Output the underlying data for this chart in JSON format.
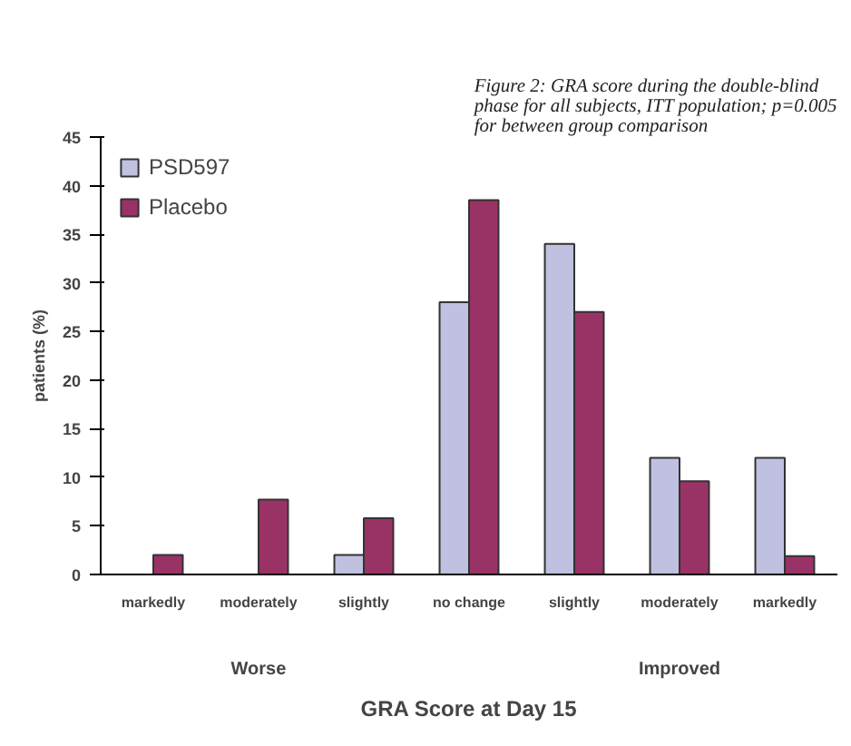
{
  "chart_data": {
    "type": "bar",
    "title": "Figure 2: GRA score during the double-blind phase for all subjects, ITT population; p=0.005 for between group comparison",
    "xlabel": "GRA Score at Day 15",
    "ylabel": "patients (%)",
    "categories": [
      "markedly",
      "moderately",
      "slightly",
      "no change",
      "slightly",
      "moderately",
      "markedly"
    ],
    "series": [
      {
        "name": "PSD597",
        "color": "#c0c0e0",
        "values": [
          null,
          null,
          2,
          28,
          34,
          12,
          12
        ]
      },
      {
        "name": "Placebo",
        "color": "#993366",
        "values": [
          2,
          7.7,
          5.8,
          38.5,
          27,
          9.6,
          1.9
        ]
      }
    ],
    "annotations": [
      "Worse",
      "Improved"
    ],
    "ylim": [
      0,
      45
    ],
    "yticks": [
      0,
      5,
      10,
      15,
      20,
      25,
      30,
      35,
      40,
      45
    ],
    "grid": false,
    "legend": "top left"
  }
}
